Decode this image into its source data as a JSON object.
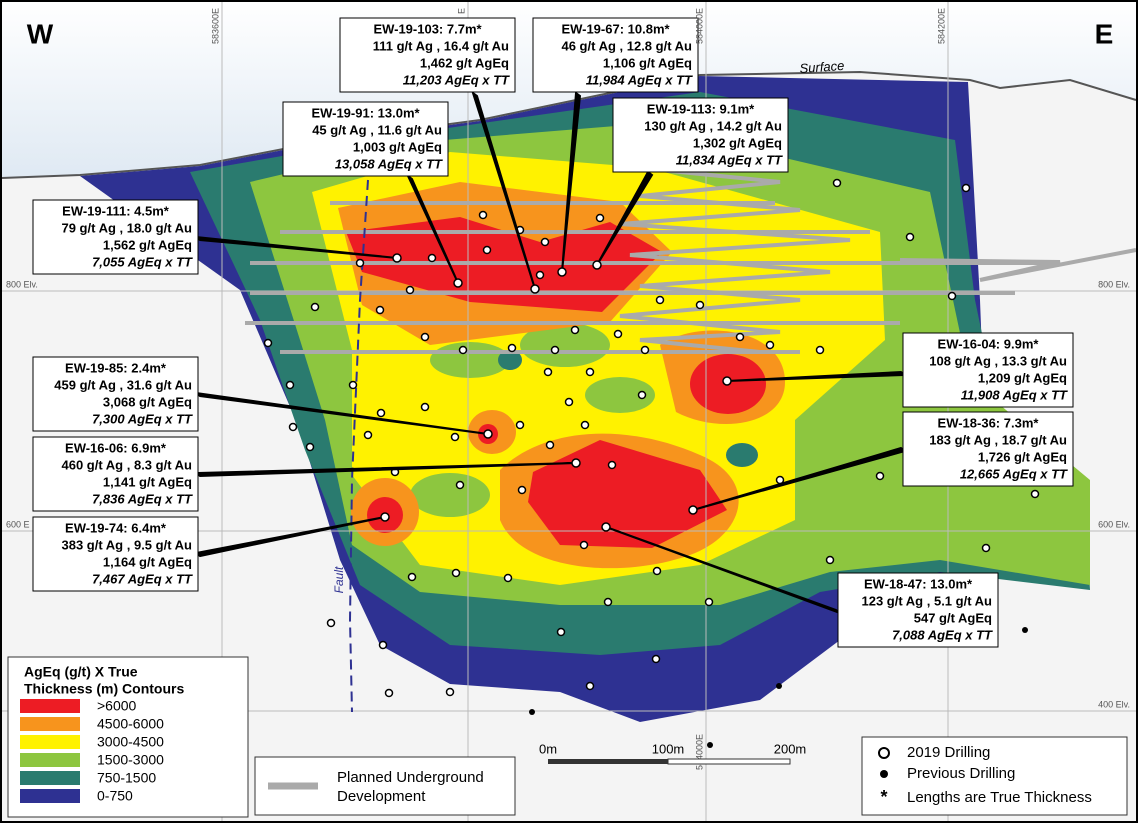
{
  "labels": {
    "west": "W",
    "east": "E",
    "surface": "Surface",
    "fault": "Fault"
  },
  "grid": {
    "eastings": [
      "583600E",
      "E",
      "584000E",
      "584200E"
    ],
    "bottom_easting": "584000E",
    "left_elevations": [
      "800 Elv.",
      "600 E"
    ],
    "right_elevations": [
      "800 Elv.",
      "600 Elv.",
      "400 Elv."
    ]
  },
  "callouts": [
    {
      "hole": "EW-19-103: 7.7m*",
      "grade": "111 g/t Ag , 16.4 g/t Au",
      "ageq": "1,462 g/t AgEq",
      "product": "11,203 AgEq x TT"
    },
    {
      "hole": "EW-19-67: 10.8m*",
      "grade": "46 g/t Ag , 12.8 g/t Au",
      "ageq": "1,106 g/t AgEq",
      "product": "11,984 AgEq x TT"
    },
    {
      "hole": "EW-19-91: 13.0m*",
      "grade": "45 g/t Ag , 11.6 g/t Au",
      "ageq": "1,003 g/t AgEq",
      "product": "13,058 AgEq x TT"
    },
    {
      "hole": "EW-19-113: 9.1m*",
      "grade": "130 g/t Ag , 14.2 g/t Au",
      "ageq": "1,302 g/t AgEq",
      "product": "11,834 AgEq x TT"
    },
    {
      "hole": "EW-19-111: 4.5m*",
      "grade": "79 g/t Ag , 18.0 g/t Au",
      "ageq": "1,562 g/t AgEq",
      "product": "7,055 AgEq x TT"
    },
    {
      "hole": "EW-16-04: 9.9m*",
      "grade": "108 g/t Ag , 13.3 g/t Au",
      "ageq": "1,209 g/t AgEq",
      "product": "11,908 AgEq x TT"
    },
    {
      "hole": "EW-19-85: 2.4m*",
      "grade": "459 g/t Ag , 31.6 g/t Au",
      "ageq": "3,068 g/t AgEq",
      "product": "7,300 AgEq x TT"
    },
    {
      "hole": "EW-18-36: 7.3m*",
      "grade": "183 g/t Ag , 18.7 g/t Au",
      "ageq": "1,726 g/t AgEq",
      "product": "12,665 AgEq x TT"
    },
    {
      "hole": "EW-16-06: 6.9m*",
      "grade": "460 g/t Ag , 8.3 g/t Au",
      "ageq": "1,141 g/t AgEq",
      "product": "7,836 AgEq x TT"
    },
    {
      "hole": "EW-19-74: 6.4m*",
      "grade": "383 g/t Ag , 9.5 g/t Au",
      "ageq": "1,164 g/t AgEq",
      "product": "7,467 AgEq x TT"
    },
    {
      "hole": "EW-18-47: 13.0m*",
      "grade": "123 g/t Ag , 5.1 g/t Au",
      "ageq": "547 g/t AgEq",
      "product": "7,088 AgEq x TT"
    }
  ],
  "contour_legend": {
    "title": [
      "AgEq (g/t) X True",
      "Thickness (m) Contours"
    ],
    "items": [
      ">6000",
      "4500-6000",
      "3000-4500",
      "1500-3000",
      "750-1500",
      "0-750"
    ]
  },
  "development_legend": [
    "Planned Underground",
    "Development"
  ],
  "scale": [
    "0m",
    "100m",
    "200m"
  ],
  "drill_legend": {
    "items": [
      "2019 Drilling",
      "Previous Drilling",
      "Lengths are True Thickness"
    ],
    "asterisk": "*"
  }
}
